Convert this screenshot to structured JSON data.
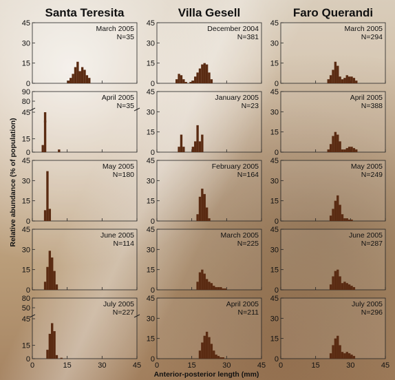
{
  "ylabel": "Relative abundance (% of population)",
  "xlabel": "Anterior-posterior length (mm)",
  "colors": {
    "bar": "#5a2b12"
  },
  "columns": [
    "Santa Teresita",
    "Villa Gesell",
    "Faro Querandi"
  ],
  "chart_data": {
    "type": "bar",
    "x_range": [
      0,
      45
    ],
    "x_ticks": [
      "0",
      "15",
      "30",
      "45"
    ],
    "panels": [
      {
        "col": 0,
        "row": 0,
        "date": "March 2005",
        "n": "N=35",
        "y_ticks": [
          "0",
          "15",
          "30",
          "45"
        ],
        "ylim": [
          0,
          45
        ],
        "bins": [
          [
            15,
            2
          ],
          [
            16,
            4
          ],
          [
            17,
            7
          ],
          [
            18,
            12
          ],
          [
            19,
            16
          ],
          [
            20,
            9
          ],
          [
            21,
            12
          ],
          [
            22,
            10
          ],
          [
            23,
            6
          ],
          [
            24,
            4
          ]
        ]
      },
      {
        "col": 0,
        "row": 1,
        "date": "April 2005",
        "n": "N=35",
        "broken": true,
        "y_ticks": [
          "0",
          "15",
          "45",
          "80",
          "90"
        ],
        "bins": [
          [
            4,
            8
          ],
          [
            5,
            60
          ],
          [
            11,
            3
          ]
        ]
      },
      {
        "col": 0,
        "row": 2,
        "date": "May 2005",
        "n": "N=180",
        "y_ticks": [
          "0",
          "15",
          "30",
          "45"
        ],
        "ylim": [
          0,
          45
        ],
        "bins": [
          [
            5,
            8
          ],
          [
            6,
            37
          ],
          [
            7,
            9
          ]
        ]
      },
      {
        "col": 0,
        "row": 3,
        "date": "June 2005",
        "n": "N=114",
        "y_ticks": [
          "0",
          "15",
          "30",
          "45"
        ],
        "ylim": [
          0,
          45
        ],
        "bins": [
          [
            5,
            6
          ],
          [
            6,
            17
          ],
          [
            7,
            29
          ],
          [
            8,
            24
          ],
          [
            9,
            14
          ],
          [
            10,
            4
          ]
        ]
      },
      {
        "col": 0,
        "row": 4,
        "date": "July 2005",
        "n": "N=227",
        "broken": true,
        "y_ticks": [
          "0",
          "15",
          "45",
          "50",
          "80"
        ],
        "bins": [
          [
            6,
            10
          ],
          [
            7,
            28
          ],
          [
            8,
            40
          ],
          [
            9,
            31
          ],
          [
            10,
            4
          ],
          [
            12,
            1
          ]
        ]
      },
      {
        "col": 1,
        "row": 0,
        "date": "December 2004",
        "n": "N=381",
        "y_ticks": [
          "0",
          "15",
          "30",
          "45"
        ],
        "ylim": [
          0,
          45
        ],
        "bins": [
          [
            8,
            3
          ],
          [
            9,
            7
          ],
          [
            10,
            6
          ],
          [
            11,
            3
          ],
          [
            12,
            1
          ],
          [
            14,
            1
          ],
          [
            15,
            2
          ],
          [
            16,
            5
          ],
          [
            17,
            8
          ],
          [
            18,
            11
          ],
          [
            19,
            14
          ],
          [
            20,
            15
          ],
          [
            21,
            14
          ],
          [
            22,
            8
          ],
          [
            23,
            3
          ]
        ]
      },
      {
        "col": 1,
        "row": 1,
        "date": "January 2005",
        "n": "N=23",
        "y_ticks": [
          "0",
          "15",
          "30",
          "45"
        ],
        "ylim": [
          0,
          45
        ],
        "bins": [
          [
            9,
            4
          ],
          [
            10,
            13
          ],
          [
            11,
            4
          ],
          [
            15,
            4
          ],
          [
            16,
            8
          ],
          [
            17,
            20
          ],
          [
            18,
            8
          ],
          [
            19,
            13
          ]
        ]
      },
      {
        "col": 1,
        "row": 2,
        "date": "February 2005",
        "n": "N=164",
        "y_ticks": [
          "0",
          "15",
          "30",
          "45"
        ],
        "ylim": [
          0,
          45
        ],
        "bins": [
          [
            17,
            5
          ],
          [
            18,
            18
          ],
          [
            19,
            24
          ],
          [
            20,
            20
          ],
          [
            21,
            10
          ],
          [
            22,
            2
          ]
        ]
      },
      {
        "col": 1,
        "row": 3,
        "date": "March 2005",
        "n": "N=225",
        "y_ticks": [
          "0",
          "15",
          "30",
          "45"
        ],
        "ylim": [
          0,
          45
        ],
        "bins": [
          [
            17,
            6
          ],
          [
            18,
            13
          ],
          [
            19,
            15
          ],
          [
            20,
            12
          ],
          [
            21,
            8
          ],
          [
            22,
            6
          ],
          [
            23,
            5
          ],
          [
            24,
            3
          ],
          [
            25,
            2
          ],
          [
            26,
            2
          ],
          [
            27,
            2
          ],
          [
            28,
            1
          ],
          [
            29,
            1
          ]
        ]
      },
      {
        "col": 1,
        "row": 4,
        "date": "April 2005",
        "n": "N=211",
        "y_ticks": [
          "0",
          "15",
          "30",
          "45"
        ],
        "ylim": [
          0,
          45
        ],
        "bins": [
          [
            18,
            6
          ],
          [
            19,
            12
          ],
          [
            20,
            17
          ],
          [
            21,
            20
          ],
          [
            22,
            16
          ],
          [
            23,
            11
          ],
          [
            24,
            6
          ],
          [
            25,
            3
          ],
          [
            26,
            2
          ],
          [
            27,
            1
          ],
          [
            28,
            1
          ]
        ]
      },
      {
        "col": 2,
        "row": 0,
        "date": "March 2005",
        "n": "N=294",
        "y_ticks": [
          "0",
          "15",
          "30",
          "45"
        ],
        "ylim": [
          0,
          45
        ],
        "bins": [
          [
            20,
            3
          ],
          [
            21,
            6
          ],
          [
            22,
            10
          ],
          [
            23,
            16
          ],
          [
            24,
            13
          ],
          [
            25,
            5
          ],
          [
            26,
            3
          ],
          [
            27,
            4
          ],
          [
            28,
            6
          ],
          [
            29,
            5
          ],
          [
            30,
            5
          ],
          [
            31,
            4
          ],
          [
            32,
            2
          ]
        ]
      },
      {
        "col": 2,
        "row": 1,
        "date": "April 2005",
        "n": "N=388",
        "y_ticks": [
          "0",
          "15",
          "30",
          "45"
        ],
        "ylim": [
          0,
          45
        ],
        "bins": [
          [
            20,
            2
          ],
          [
            21,
            6
          ],
          [
            22,
            12
          ],
          [
            23,
            15
          ],
          [
            24,
            13
          ],
          [
            25,
            8
          ],
          [
            26,
            2
          ],
          [
            27,
            2
          ],
          [
            28,
            3
          ],
          [
            29,
            4
          ],
          [
            30,
            4
          ],
          [
            31,
            3
          ],
          [
            32,
            2
          ]
        ]
      },
      {
        "col": 2,
        "row": 2,
        "date": "May 2005",
        "n": "N=249",
        "y_ticks": [
          "0",
          "15",
          "30",
          "45"
        ],
        "ylim": [
          0,
          45
        ],
        "bins": [
          [
            21,
            4
          ],
          [
            22,
            9
          ],
          [
            23,
            15
          ],
          [
            24,
            19
          ],
          [
            25,
            12
          ],
          [
            26,
            5
          ],
          [
            27,
            2
          ],
          [
            28,
            2
          ],
          [
            29,
            1
          ],
          [
            30,
            1
          ]
        ]
      },
      {
        "col": 2,
        "row": 3,
        "date": "June 2005",
        "n": "N=287",
        "y_ticks": [
          "0",
          "15",
          "30",
          "45"
        ],
        "ylim": [
          0,
          45
        ],
        "bins": [
          [
            21,
            4
          ],
          [
            22,
            10
          ],
          [
            23,
            14
          ],
          [
            24,
            15
          ],
          [
            25,
            10
          ],
          [
            26,
            5
          ],
          [
            27,
            6
          ],
          [
            28,
            5
          ],
          [
            29,
            4
          ],
          [
            30,
            3
          ],
          [
            31,
            2
          ]
        ]
      },
      {
        "col": 2,
        "row": 4,
        "date": "July 2005",
        "n": "N=296",
        "y_ticks": [
          "0",
          "15",
          "30",
          "45"
        ],
        "ylim": [
          0,
          45
        ],
        "bins": [
          [
            21,
            4
          ],
          [
            22,
            10
          ],
          [
            23,
            15
          ],
          [
            24,
            17
          ],
          [
            25,
            10
          ],
          [
            26,
            5
          ],
          [
            27,
            4
          ],
          [
            28,
            5
          ],
          [
            29,
            4
          ],
          [
            30,
            3
          ],
          [
            31,
            2
          ]
        ]
      }
    ]
  }
}
